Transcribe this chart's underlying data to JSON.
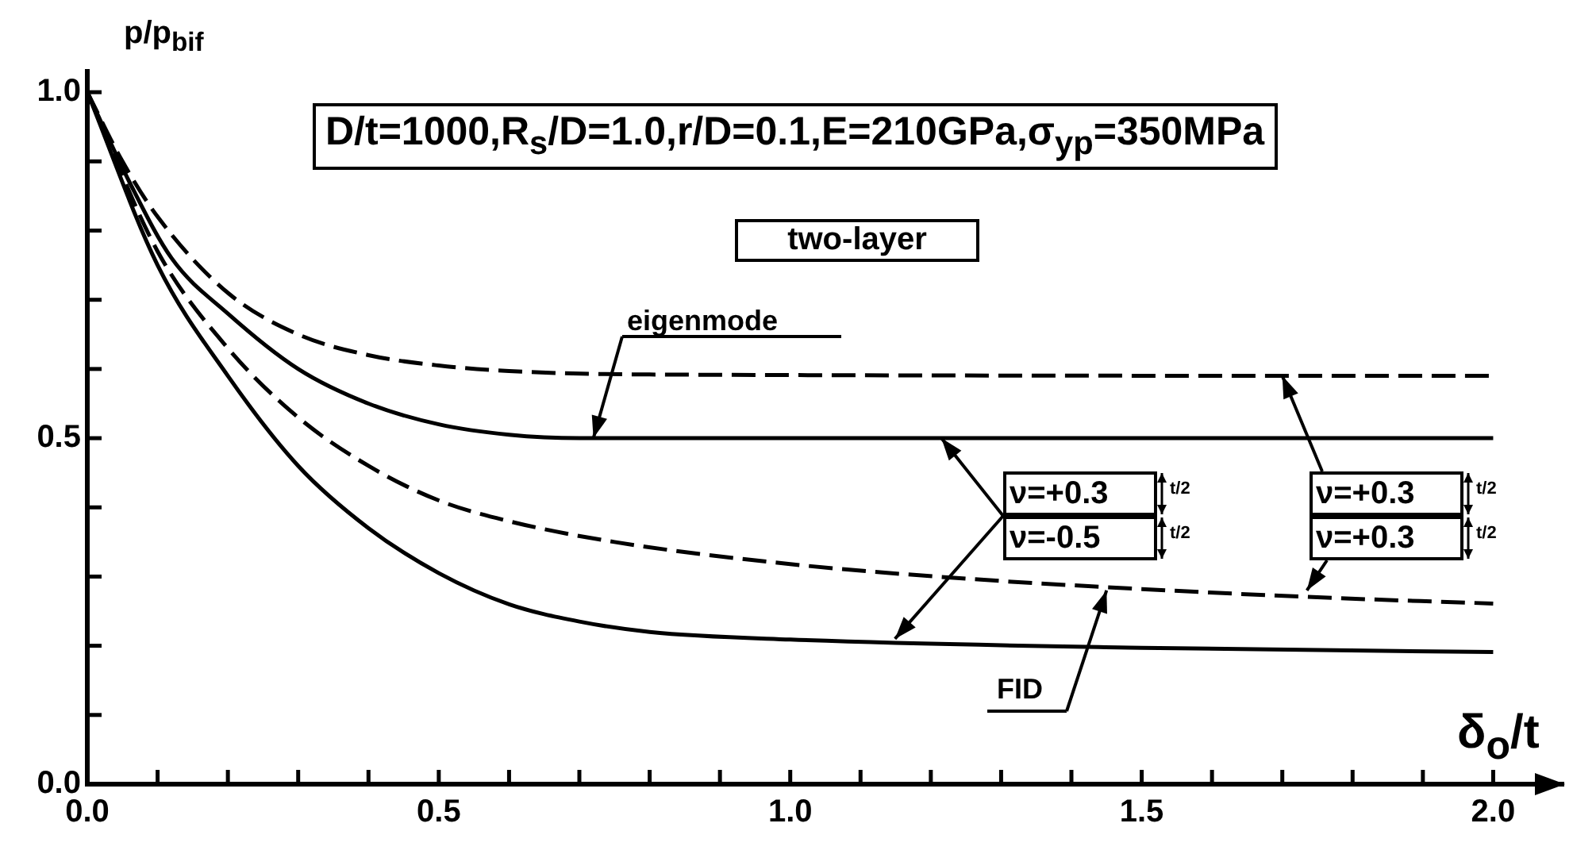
{
  "chart_data": {
    "type": "line",
    "title": "D/t=1000,R$_{s}$/D=1.0,r/D=0.1,E=210GPa,σ$_{yp}$=350MPa",
    "subtitle": "two-layer",
    "xlabel": "δ$_{o}$/t",
    "ylabel": "p/p$_{bif}$",
    "xlim": [
      0,
      2.1
    ],
    "ylim": [
      0,
      1.03
    ],
    "xticks": [
      {
        "value": 0,
        "label": "0.0"
      },
      {
        "value": 0.1,
        "label": null
      },
      {
        "value": 0.2,
        "label": null
      },
      {
        "value": 0.3,
        "label": null
      },
      {
        "value": 0.4,
        "label": null
      },
      {
        "value": 0.5,
        "label": "0.5"
      },
      {
        "value": 0.6,
        "label": null
      },
      {
        "value": 0.7,
        "label": null
      },
      {
        "value": 0.8,
        "label": null
      },
      {
        "value": 0.9,
        "label": null
      },
      {
        "value": 1,
        "label": "1.0"
      },
      {
        "value": 1.1,
        "label": null
      },
      {
        "value": 1.2,
        "label": null
      },
      {
        "value": 1.3,
        "label": null
      },
      {
        "value": 1.4,
        "label": null
      },
      {
        "value": 1.5,
        "label": "1.5"
      },
      {
        "value": 1.6,
        "label": null
      },
      {
        "value": 1.7,
        "label": null
      },
      {
        "value": 1.8,
        "label": null
      },
      {
        "value": 1.9,
        "label": null
      },
      {
        "value": 2,
        "label": "2.0"
      }
    ],
    "yticks": [
      {
        "value": 0,
        "label": "0.0"
      },
      {
        "value": 0.1,
        "label": null
      },
      {
        "value": 0.2,
        "label": null
      },
      {
        "value": 0.3,
        "label": null
      },
      {
        "value": 0.4,
        "label": null
      },
      {
        "value": 0.5,
        "label": "0.5"
      },
      {
        "value": 0.6,
        "label": null
      },
      {
        "value": 0.7,
        "label": null
      },
      {
        "value": 0.8,
        "label": null
      },
      {
        "value": 0.9,
        "label": null
      },
      {
        "value": 1,
        "label": "1.0"
      }
    ],
    "grid": false,
    "legend": false,
    "marker": "none",
    "series": [
      {
        "color": "#000000",
        "line_style": "solid",
        "x": [
          0,
          0.06,
          0.12,
          0.2,
          0.3,
          0.4,
          0.5,
          0.6,
          0.7,
          2.0
        ],
        "values": [
          1,
          0.87,
          0.76,
          0.68,
          0.6,
          0.55,
          0.52,
          0.505,
          0.5,
          0.5
        ]
      },
      {
        "color": "#000000",
        "line_style": "dashed",
        "x": [
          0,
          0.05,
          0.1,
          0.2,
          0.3,
          0.4,
          0.5,
          0.6,
          0.8,
          2.0
        ],
        "values": [
          1,
          0.9,
          0.82,
          0.71,
          0.65,
          0.62,
          0.605,
          0.597,
          0.592,
          0.59
        ]
      },
      {
        "color": "#000000",
        "line_style": "dashed",
        "x": [
          0,
          0.1,
          0.2,
          0.3,
          0.4,
          0.5,
          0.6,
          0.75,
          1.0,
          1.25,
          1.5,
          1.75,
          2.0
        ],
        "values": [
          1,
          0.77,
          0.63,
          0.53,
          0.46,
          0.41,
          0.38,
          0.35,
          0.318,
          0.297,
          0.282,
          0.27,
          0.261
        ]
      },
      {
        "color": "#000000",
        "line_style": "solid",
        "x": [
          0,
          0.1,
          0.2,
          0.3,
          0.4,
          0.5,
          0.6,
          0.7,
          0.8,
          1.0,
          1.5,
          2.0
        ],
        "values": [
          1,
          0.75,
          0.59,
          0.46,
          0.37,
          0.305,
          0.26,
          0.235,
          0.22,
          0.209,
          0.197,
          0.191
        ]
      }
    ],
    "annotations": [
      {
        "text": "eigenmode",
        "x": 0.72,
        "y": 0.5
      },
      {
        "text": "FID",
        "x": 1.45,
        "y": 0.28
      },
      {
        "text": "ν=+0.3",
        "x": 1.215,
        "y": 0.5
      },
      {
        "text": "ν=-0.5",
        "x": 1.149,
        "y": 0.21
      },
      {
        "text": "ν=+0.3",
        "x": 1.7,
        "y": 0.59
      },
      {
        "text": "ν=+0.3",
        "x": 1.735,
        "y": 0.28
      },
      "t/2",
      "t/2",
      "t/2",
      "t/2"
    ]
  }
}
